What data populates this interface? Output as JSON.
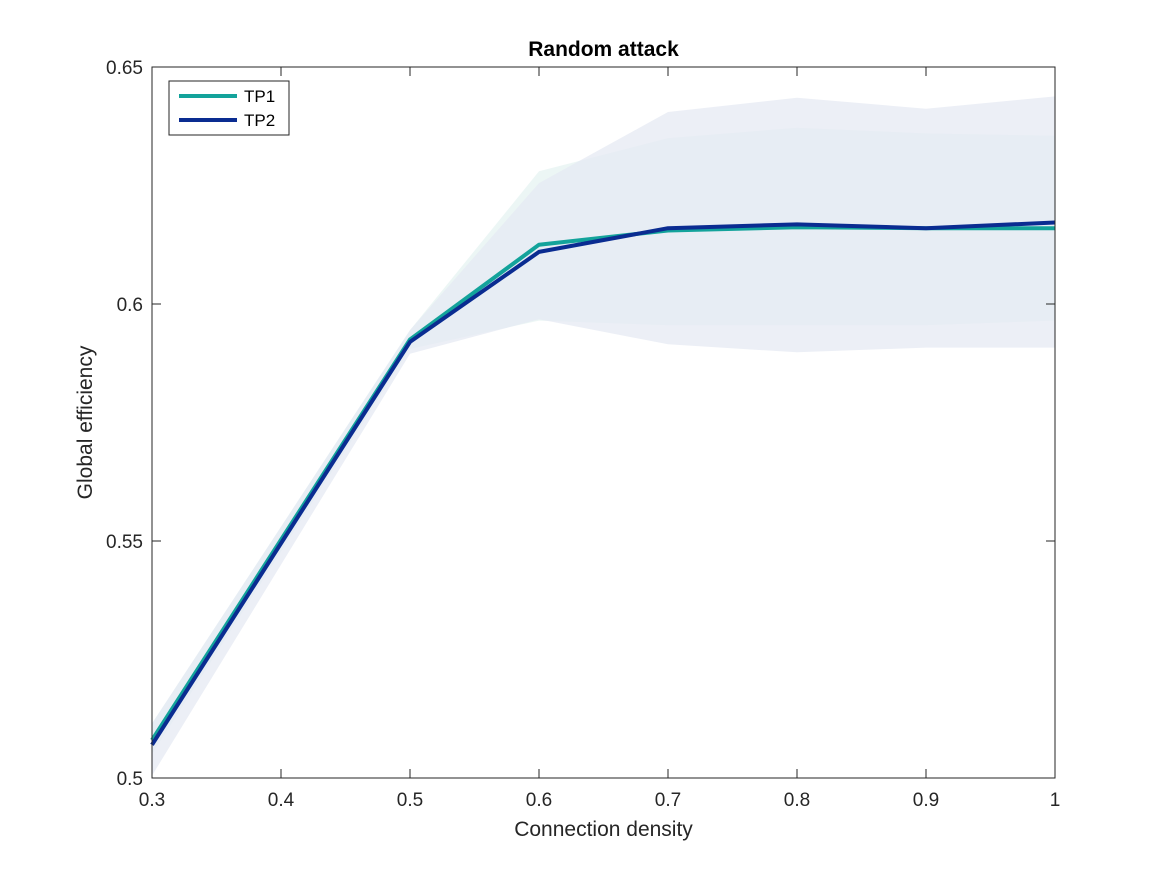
{
  "chart_data": {
    "type": "line",
    "title": "Random attack",
    "xlabel": "Connection density",
    "ylabel": "Global efficiency",
    "xlim": [
      0.3,
      1
    ],
    "ylim": [
      0.5,
      0.65
    ],
    "xticks": [
      0.3,
      0.4,
      0.5,
      0.6,
      0.7,
      0.8,
      0.9,
      1
    ],
    "xtick_labels": [
      "0.3",
      "0.4",
      "0.5",
      "0.6",
      "0.7",
      "0.8",
      "0.9",
      "1"
    ],
    "yticks": [
      0.5,
      0.55,
      0.6,
      0.65
    ],
    "ytick_labels": [
      "0.5",
      "0.55",
      "0.6",
      "0.65"
    ],
    "grid": false,
    "legend_position": "top-left",
    "x": [
      0.3,
      0.5,
      0.6,
      0.7,
      0.8,
      0.9,
      1
    ],
    "series": [
      {
        "name": "TP1",
        "color": "#13A39B",
        "values": [
          0.508,
          0.5925,
          0.6125,
          0.6155,
          0.6162,
          0.616,
          0.616
        ],
        "band_lower": [
          0.505,
          0.5905,
          0.5965,
          0.5955,
          0.5955,
          0.5955,
          0.5965
        ],
        "band_upper": [
          0.5115,
          0.5945,
          0.628,
          0.635,
          0.6372,
          0.636,
          0.6355
        ],
        "band_color": "#E5F3F2"
      },
      {
        "name": "TP2",
        "color": "#0A2C91",
        "values": [
          0.507,
          0.592,
          0.611,
          0.616,
          0.6168,
          0.616,
          0.6172
        ],
        "band_lower": [
          0.5005,
          0.5895,
          0.5968,
          0.5915,
          0.5898,
          0.5908,
          0.5908
        ],
        "band_upper": [
          0.5115,
          0.5945,
          0.6255,
          0.6405,
          0.6435,
          0.6412,
          0.6438
        ],
        "band_color": "#E6EAF3"
      }
    ]
  }
}
